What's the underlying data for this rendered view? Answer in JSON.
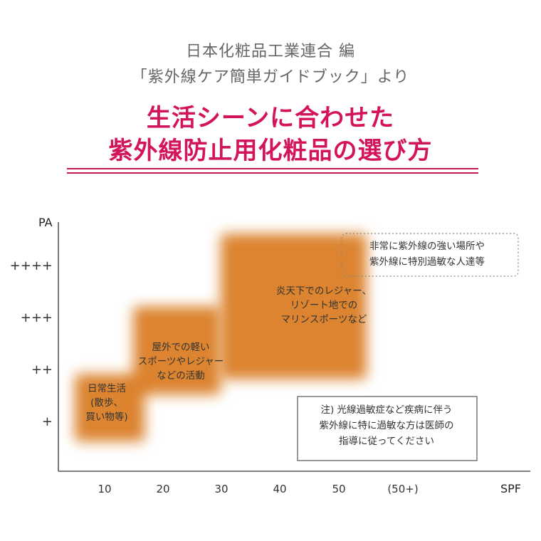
{
  "header": {
    "source_line1": "日本化粧品工業連合 編",
    "source_line2": "「紫外線ケア簡単ガイドブック」より",
    "title_line1": "生活シーンに合わせた",
    "title_line2": "紫外線防止用化粧品の選び方"
  },
  "colors": {
    "title": "#d3145a",
    "rule": "#c21a52",
    "axis": "#555555",
    "blob": "#d97a1c",
    "text": "#333333"
  },
  "chart_data": {
    "type": "heatmap",
    "xlabel": "SPF",
    "ylabel": "PA",
    "x_ticks": [
      "10",
      "20",
      "30",
      "40",
      "50",
      "(50+)"
    ],
    "y_ticks": [
      "+",
      "++",
      "+++",
      "++++"
    ],
    "regions": [
      {
        "lines": [
          "日常生活",
          "(散歩、",
          "買い物等)"
        ],
        "spf": [
          5,
          17
        ],
        "pa": [
          0.6,
          1.9
        ]
      },
      {
        "lines": [
          "屋外での軽い",
          "スポーツやレジャー",
          "などの活動"
        ],
        "spf": [
          15,
          30
        ],
        "pa": [
          1.5,
          3.2
        ]
      },
      {
        "lines": [
          "炎天下でのレジャー、",
          "リゾート地での",
          "マリンスポーツなど"
        ],
        "spf": [
          30,
          55
        ],
        "pa": [
          1.8,
          4.6
        ]
      }
    ],
    "notes": [
      {
        "lines": [
          "非常に紫外線の強い場所や",
          "紫外線に特別過敏な人達等"
        ],
        "style": "dotted"
      },
      {
        "lines": [
          "注) 光線過敏症など疾病に伴う",
          "紫外線に特に過敏な方は医師の",
          "指導に従ってください"
        ],
        "style": "solid"
      }
    ]
  }
}
